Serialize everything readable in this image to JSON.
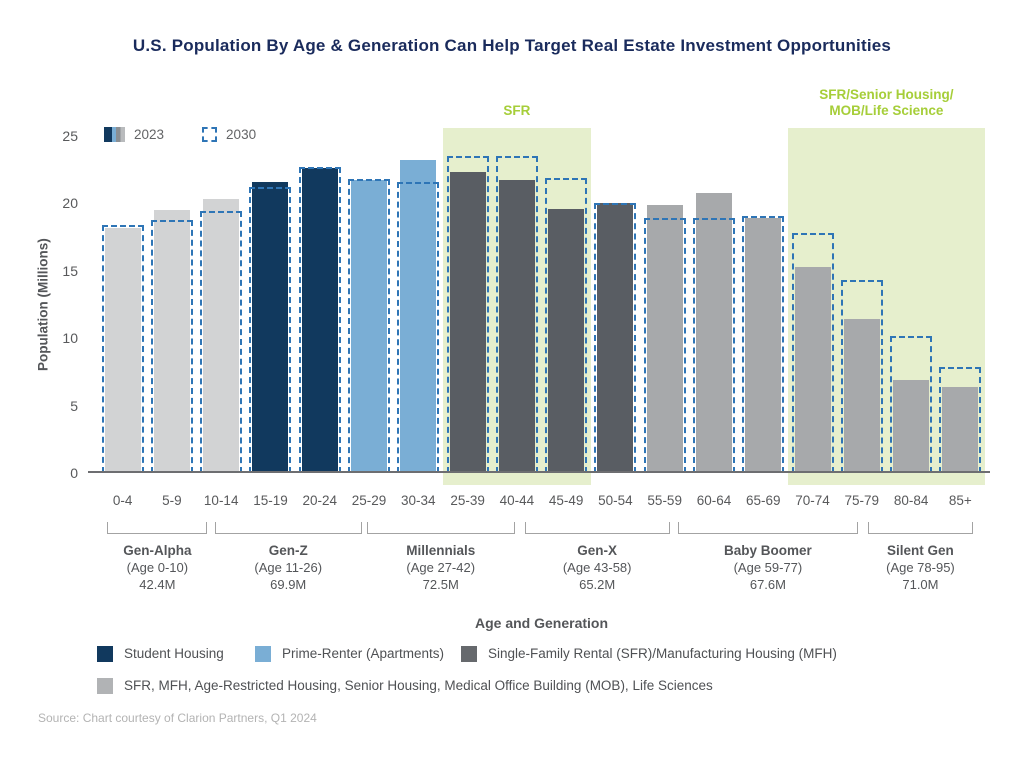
{
  "source": "Source: Chart courtesy of Clarion Partners, Q1 2024",
  "series_legend": {
    "label_2023": "2023",
    "label_2030": "2030"
  },
  "chart_data": {
    "type": "bar",
    "title": "U.S. Population By Age & Generation Can Help Target Real Estate Investment Opportunities",
    "xlabel": "Age and Generation",
    "ylabel": "Population (Millions)",
    "ylim": [
      0,
      25
    ],
    "yticks": [
      0,
      5,
      10,
      15,
      20,
      25
    ],
    "grid": "off",
    "legend_position": "top-left and bottom",
    "categories": [
      "0-4",
      "5-9",
      "10-14",
      "15-19",
      "20-24",
      "25-29",
      "30-34",
      "25-39",
      "40-44",
      "45-49",
      "50-54",
      "55-59",
      "60-64",
      "65-69",
      "70-74",
      "75-79",
      "80-84",
      "85+"
    ],
    "series": [
      {
        "name": "2023",
        "style": "solid-fill",
        "values": [
          18.2,
          19.5,
          20.3,
          21.6,
          22.6,
          21.7,
          23.2,
          22.3,
          21.7,
          19.6,
          20.0,
          19.9,
          20.8,
          18.9,
          15.3,
          11.4,
          6.9,
          6.4
        ]
      },
      {
        "name": "2030",
        "style": "dashed-outline",
        "outline_color": "#2e75b6",
        "values": [
          18.4,
          18.8,
          19.4,
          21.2,
          22.7,
          21.8,
          21.6,
          23.5,
          23.5,
          21.9,
          20.0,
          18.9,
          18.9,
          19.1,
          17.8,
          14.3,
          10.2,
          7.9
        ]
      }
    ],
    "bar_colors": [
      "#d2d3d4",
      "#d2d3d4",
      "#d2d3d4",
      "#11395e",
      "#11395e",
      "#7aaed5",
      "#7aaed5",
      "#595d63",
      "#595d63",
      "#595d63",
      "#595d63",
      "#a7a9ab",
      "#a7a9ab",
      "#a7a9ab",
      "#a7a9ab",
      "#a7a9ab",
      "#a7a9ab",
      "#a7a9ab"
    ],
    "highlights": [
      {
        "label_lines": [
          "SFR"
        ],
        "start_slot": 7,
        "end_slot": 10,
        "fill": "#e6efcd",
        "label_color": "#a6ce39"
      },
      {
        "label_lines": [
          "SFR/Senior Housing/",
          "MOB/Life Science"
        ],
        "start_slot": 14,
        "end_slot": 18,
        "fill": "#e6efcd",
        "label_color": "#a6ce39"
      }
    ],
    "generations": [
      {
        "name": "Gen-Alpha",
        "age": "(Age 0-10)",
        "population": "42.4M",
        "span": [
          0.19,
          2.22
        ]
      },
      {
        "name": "Gen-Z",
        "age": "(Age 11-26)",
        "population": "69.9M",
        "span": [
          2.37,
          5.35
        ]
      },
      {
        "name": "Millennials",
        "age": "(Age 27-42)",
        "population": "72.5M",
        "span": [
          5.45,
          8.46
        ]
      },
      {
        "name": "Gen-X",
        "age": "(Age 43-58)",
        "population": "65.2M",
        "span": [
          8.66,
          11.6
        ]
      },
      {
        "name": "Baby Boomer",
        "age": "(Age 59-77)",
        "population": "67.6M",
        "span": [
          11.77,
          15.42
        ]
      },
      {
        "name": "Silent Gen",
        "age": "(Age 78-95)",
        "population": "71.0M",
        "span": [
          15.62,
          17.76
        ]
      }
    ],
    "category_legend": [
      {
        "label": "Student Housing",
        "color": "#11395e"
      },
      {
        "label": "Prime-Renter (Apartments)",
        "color": "#7aaed5"
      },
      {
        "label": "Single-Family Rental (SFR)/Manufacturing Housing (MFH)",
        "color": "#66696d"
      },
      {
        "label": "SFR, MFH, Age-Restricted Housing, Senior Housing, Medical Office Building (MOB), Life Sciences",
        "color": "#b1b3b5"
      }
    ]
  }
}
